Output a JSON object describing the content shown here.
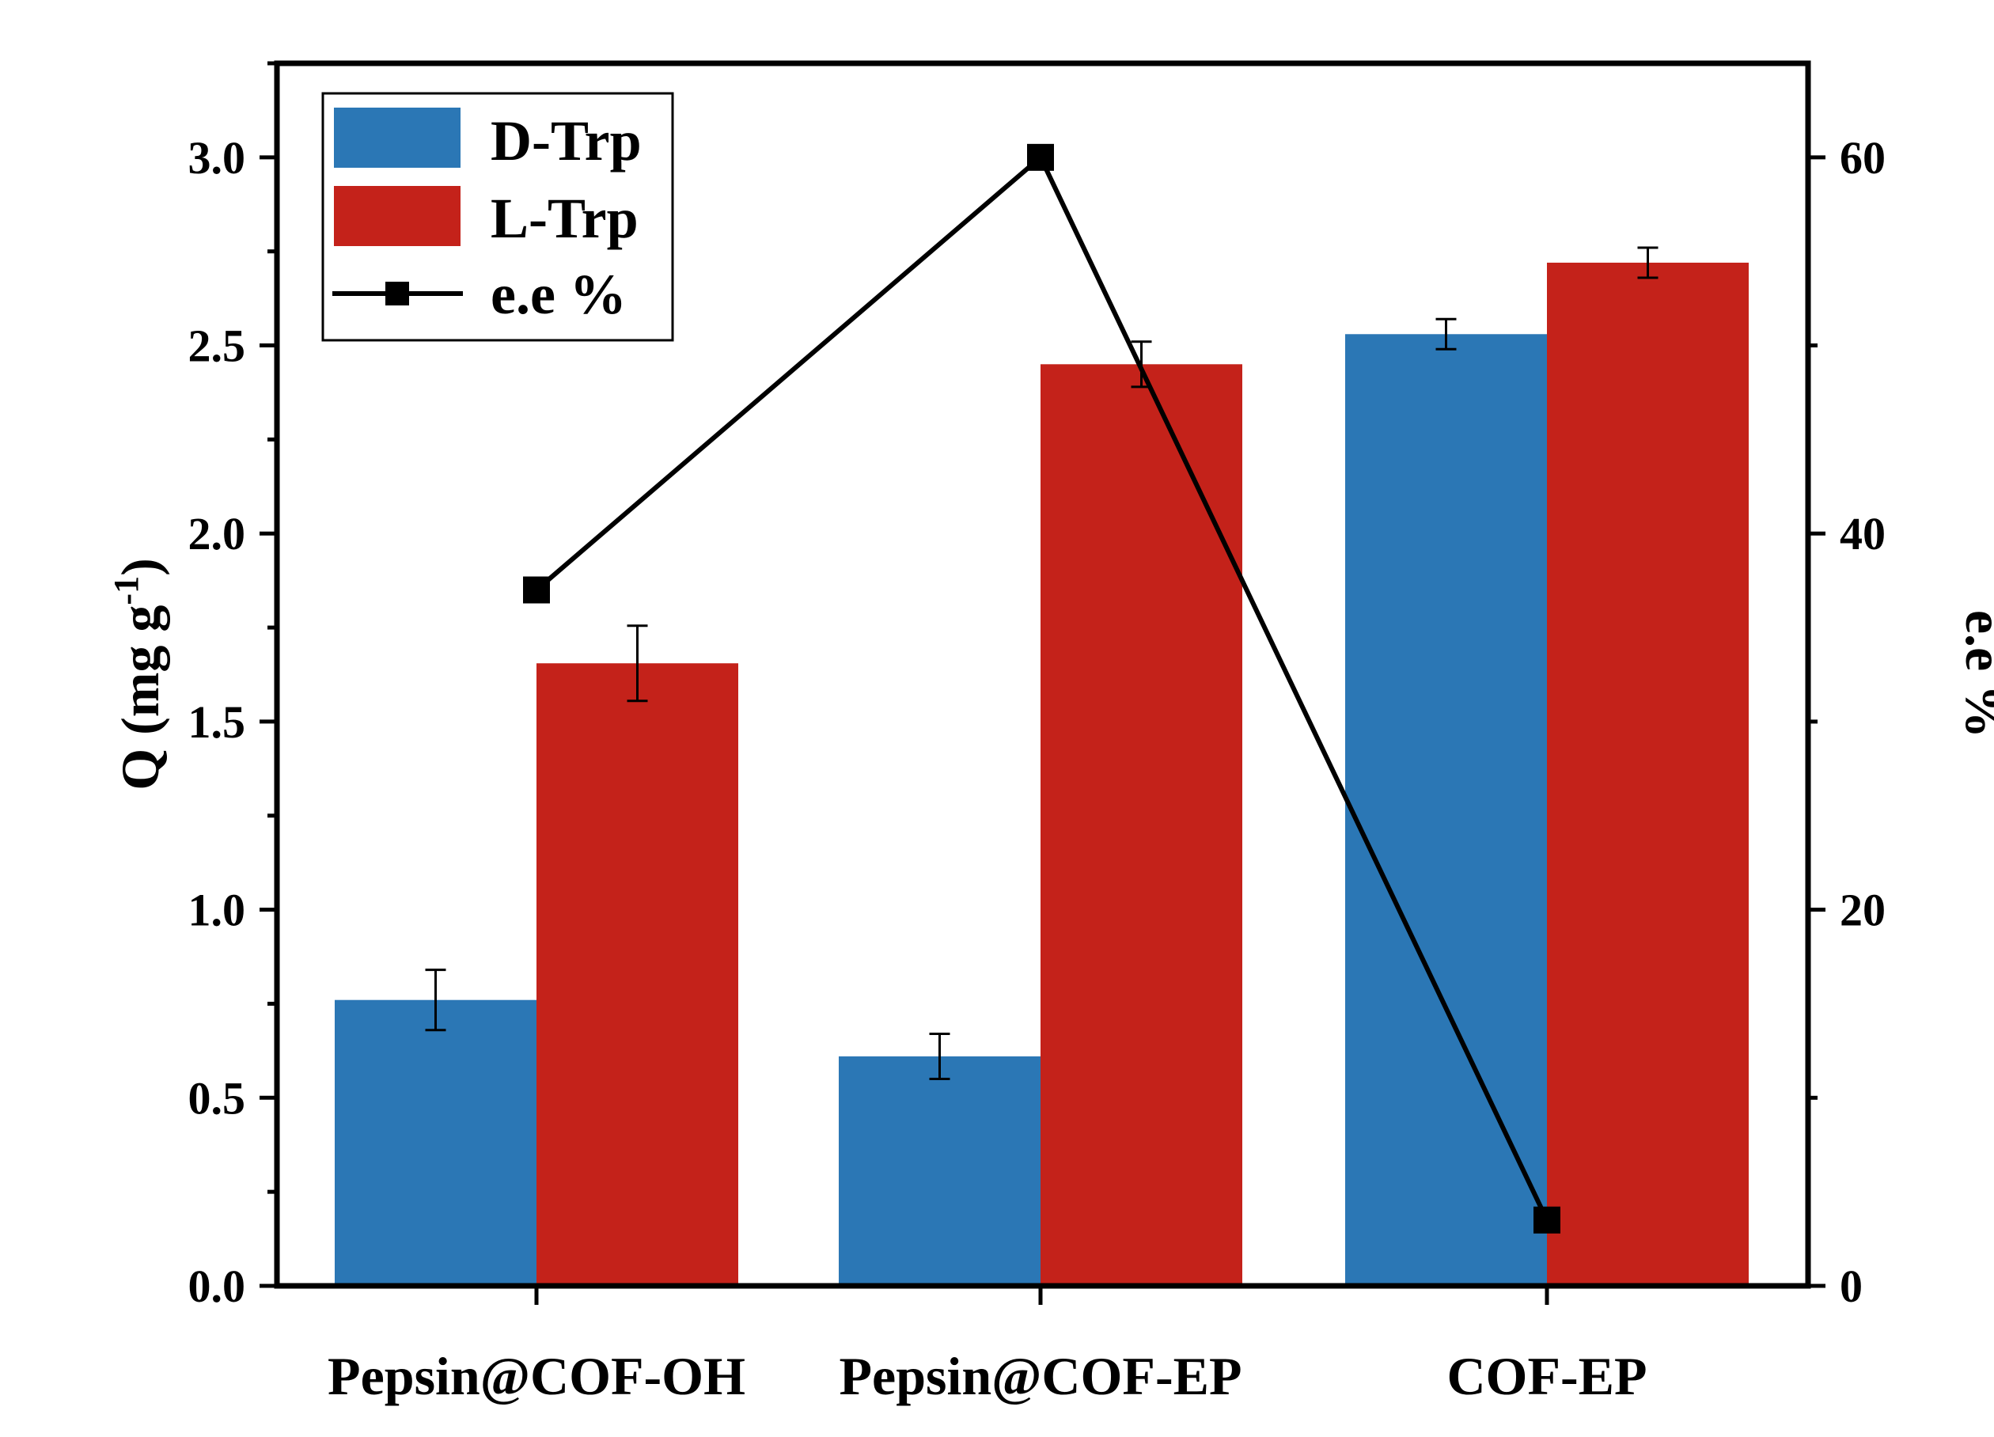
{
  "chart_data": {
    "type": "bar",
    "categories": [
      "Pepsin@COF-OH",
      "Pepsin@COF-EP",
      "COF-EP"
    ],
    "series": [
      {
        "name": "D-Trp",
        "axis": "left",
        "values": [
          0.76,
          0.61,
          2.53
        ],
        "errors": [
          0.08,
          0.06,
          0.04
        ],
        "color": "#2b77b5"
      },
      {
        "name": "L-Trp",
        "axis": "left",
        "values": [
          1.655,
          2.45,
          2.72
        ],
        "errors": [
          0.1,
          0.06,
          0.04
        ],
        "color": "#c4221a"
      },
      {
        "name": "e.e %",
        "type": "line",
        "axis": "right",
        "values": [
          37,
          60,
          3.5
        ],
        "color": "#000000"
      }
    ],
    "ylabel": "Q (mg g",
    "ylabel_sup": "-1",
    "ylabel_close": ")",
    "y2label": "e.e %",
    "ylim": [
      0,
      3.25
    ],
    "y2lim": [
      0,
      65
    ],
    "yticks": [
      "0.0",
      "0.5",
      "1.0",
      "1.5",
      "2.0",
      "2.5",
      "3.0"
    ],
    "y2ticks": [
      "0",
      "20",
      "40",
      "60"
    ],
    "legend": {
      "position": "top-left",
      "entries": [
        "D-Trp",
        "L-Trp",
        "e.e %"
      ]
    },
    "grid": false
  }
}
